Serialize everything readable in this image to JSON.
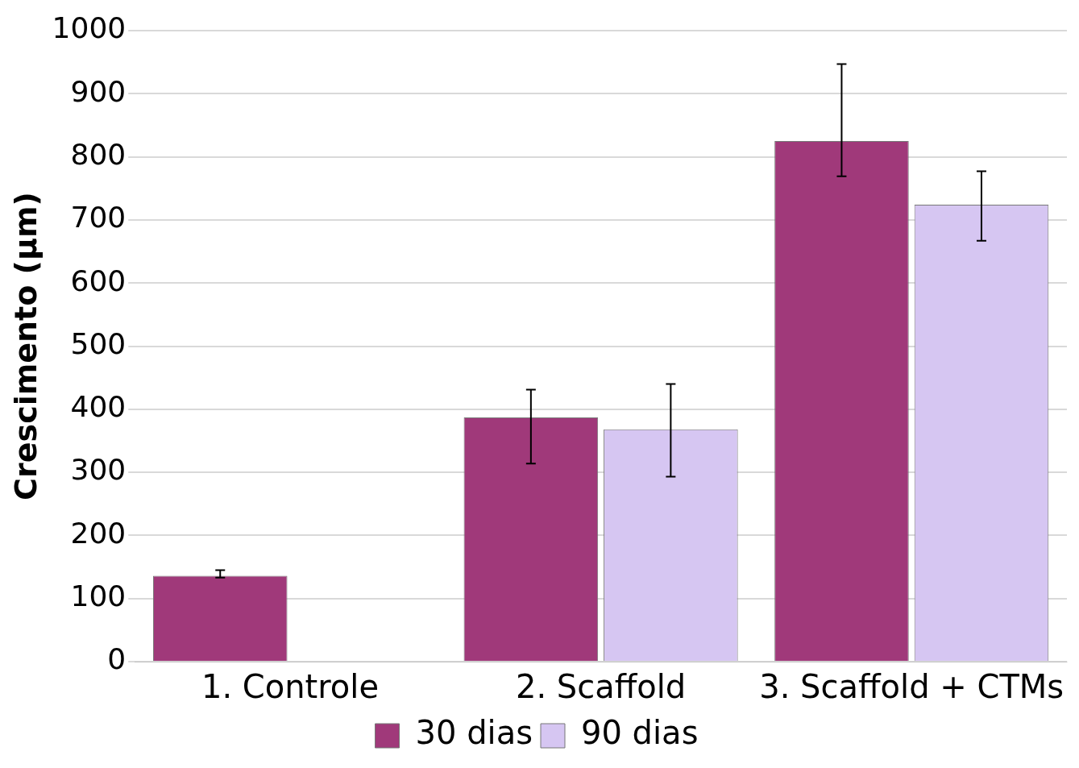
{
  "chart_data": {
    "type": "bar",
    "ylabel": "Crescimento (µm)",
    "categories": [
      "1. Controle",
      "2. Scaffold",
      "3. Scaffold + CTMs"
    ],
    "series": [
      {
        "name": "30 dias",
        "color": "#a0397a",
        "values": [
          136,
          387,
          825
        ],
        "errors": [
          [
            133,
            145
          ],
          [
            314,
            431
          ],
          [
            769,
            947
          ]
        ]
      },
      {
        "name": "90 dias",
        "color": "#d6c6f2",
        "values": [
          0,
          368,
          724
        ],
        "errors": [
          null,
          [
            293,
            440
          ],
          [
            667,
            777
          ]
        ]
      }
    ],
    "ylim": [
      0,
      1000
    ],
    "yticks": [
      0,
      100,
      200,
      300,
      400,
      500,
      600,
      700,
      800,
      900,
      1000
    ],
    "grid": "y",
    "legend": "bottom"
  }
}
